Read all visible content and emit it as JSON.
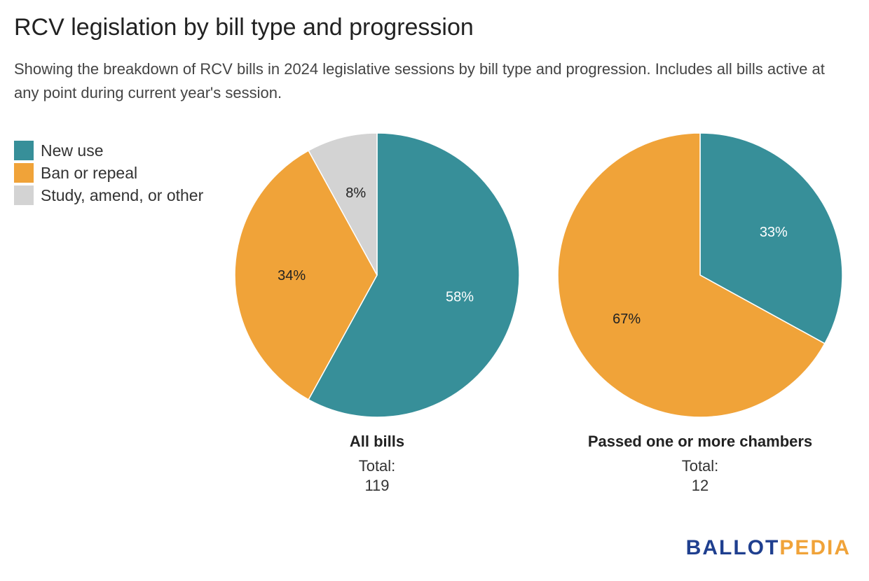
{
  "title": "RCV legislation by bill type and progression",
  "subtitle": "Showing the breakdown of RCV bills in 2024 legislative sessions by bill type and progression. Includes all bills active at any point during current year's session.",
  "legend": [
    {
      "label": "New use",
      "color": "#378f99"
    },
    {
      "label": "Ban or repeal",
      "color": "#f0a339"
    },
    {
      "label": "Study, amend, or other",
      "color": "#d3d3d3"
    }
  ],
  "chart_data": [
    {
      "type": "pie",
      "title": "All bills",
      "total_label": "Total:",
      "total": "119",
      "slices": [
        {
          "name": "New use",
          "value": 58,
          "label": "58%",
          "color": "#378f99",
          "label_color": "#ffffff"
        },
        {
          "name": "Ban or repeal",
          "value": 34,
          "label": "34%",
          "color": "#f0a339",
          "label_color": "#222222"
        },
        {
          "name": "Study, amend, or other",
          "value": 8,
          "label": "8%",
          "color": "#d3d3d3",
          "label_color": "#222222"
        }
      ]
    },
    {
      "type": "pie",
      "title": "Passed one or more chambers",
      "total_label": "Total:",
      "total": "12",
      "slices": [
        {
          "name": "New use",
          "value": 33,
          "label": "33%",
          "color": "#378f99",
          "label_color": "#ffffff"
        },
        {
          "name": "Ban or repeal",
          "value": 67,
          "label": "67%",
          "color": "#f0a339",
          "label_color": "#222222"
        }
      ]
    }
  ],
  "logo": {
    "part1": "BALLOT",
    "part2": "PEDIA",
    "color1": "#1f3f8f",
    "color2": "#f0a339"
  }
}
